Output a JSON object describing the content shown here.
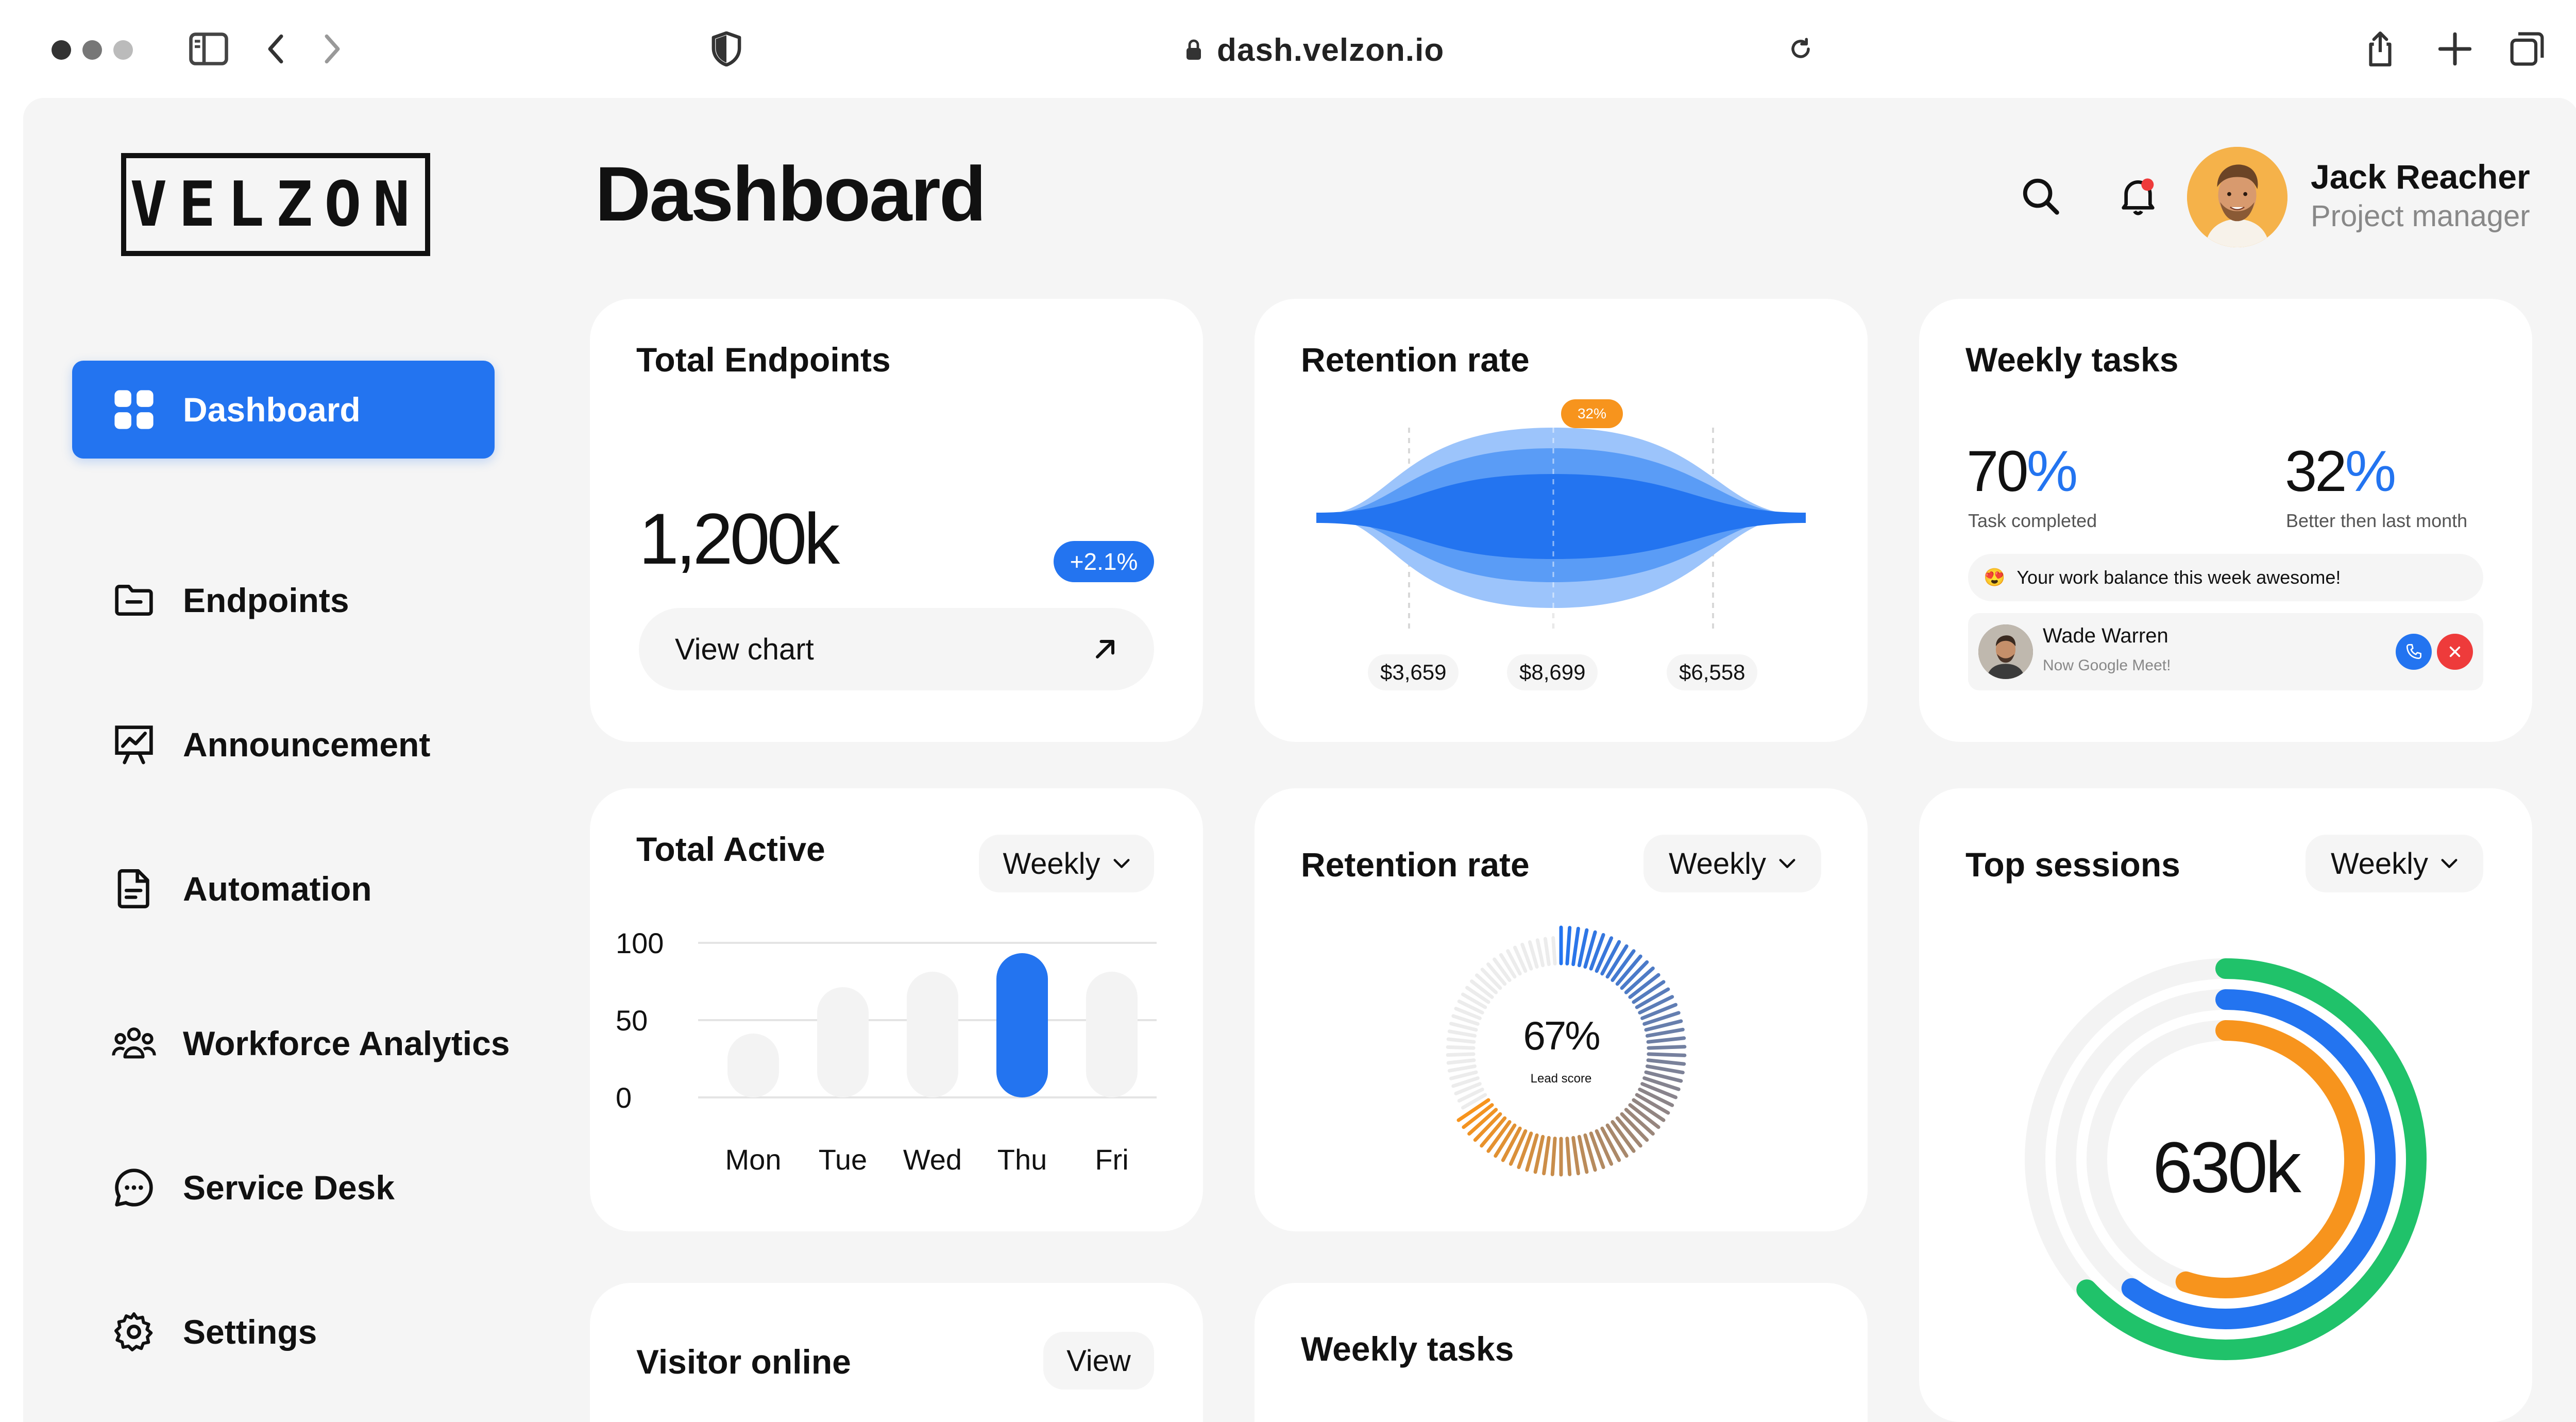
{
  "browser": {
    "url": "dash.velzon.io"
  },
  "app": {
    "logo": "VELZON",
    "page_title": "Dashboard"
  },
  "sidebar": {
    "items": [
      {
        "label": "Dashboard",
        "icon": "grid-icon",
        "active": true
      },
      {
        "label": "Endpoints",
        "icon": "folder-icon"
      },
      {
        "label": "Announcement",
        "icon": "presentation-chart-icon"
      },
      {
        "label": "Automation",
        "icon": "document-icon"
      },
      {
        "label": "Workforce Analytics",
        "icon": "team-icon"
      },
      {
        "label": "Service Desk",
        "icon": "chat-icon"
      },
      {
        "label": "Settings",
        "icon": "gear-icon"
      }
    ]
  },
  "header": {
    "user_name": "Jack Reacher",
    "user_role": "Project manager"
  },
  "cards": {
    "total_endpoints": {
      "title": "Total Endpoints",
      "value": "1,200k",
      "change": "+2.1%",
      "action": "View chart"
    },
    "retention_rate_top": {
      "title": "Retention rate",
      "marker": "32%",
      "stats": [
        "$3,659",
        "$8,699",
        "$6,558"
      ]
    },
    "weekly_tasks_top": {
      "title": "Weekly tasks",
      "completed_value": "70",
      "completed_label": "Task completed",
      "better_value": "32",
      "better_label": "Better then last month",
      "percent_sign": "%",
      "balance_emoji": "😍",
      "balance_text": "Your work balance this week awesome!",
      "meet_name": "Wade Warren",
      "meet_sub": "Now Google Meet!"
    },
    "total_active": {
      "title": "Total Active",
      "period": "Weekly"
    },
    "retention_rate_bottom": {
      "title": "Retention rate",
      "period": "Weekly",
      "value": "67%",
      "label": "Lead score"
    },
    "top_sessions": {
      "title": "Top sessions",
      "period": "Weekly",
      "value": "630k"
    },
    "visitor_online": {
      "title": "Visitor online",
      "action": "View"
    },
    "weekly_tasks_bottom": {
      "title": "Weekly tasks"
    }
  },
  "chart_data": [
    {
      "type": "bar",
      "title": "Total Active",
      "categories": [
        "Mon",
        "Tue",
        "Wed",
        "Thu",
        "Fri"
      ],
      "values": [
        48,
        78,
        88,
        100,
        88
      ],
      "highlight": "Thu",
      "ylim": [
        0,
        100
      ],
      "yticks": [
        0,
        50,
        100
      ],
      "grid": true
    },
    {
      "type": "pie",
      "title": "Retention rate",
      "value_percent": 67,
      "label": "Lead score"
    },
    {
      "type": "pie",
      "title": "Top sessions",
      "center_label": "630k",
      "series": [
        {
          "color": "#20c26a",
          "fraction": 0.63
        },
        {
          "color": "#2374f0",
          "fraction": 0.6
        },
        {
          "color": "#f7941d",
          "fraction": 0.55
        }
      ]
    }
  ],
  "colors": {
    "accent": "#2374f0",
    "orange": "#f7941d",
    "green": "#20c26a",
    "red": "#ee3b3b"
  }
}
